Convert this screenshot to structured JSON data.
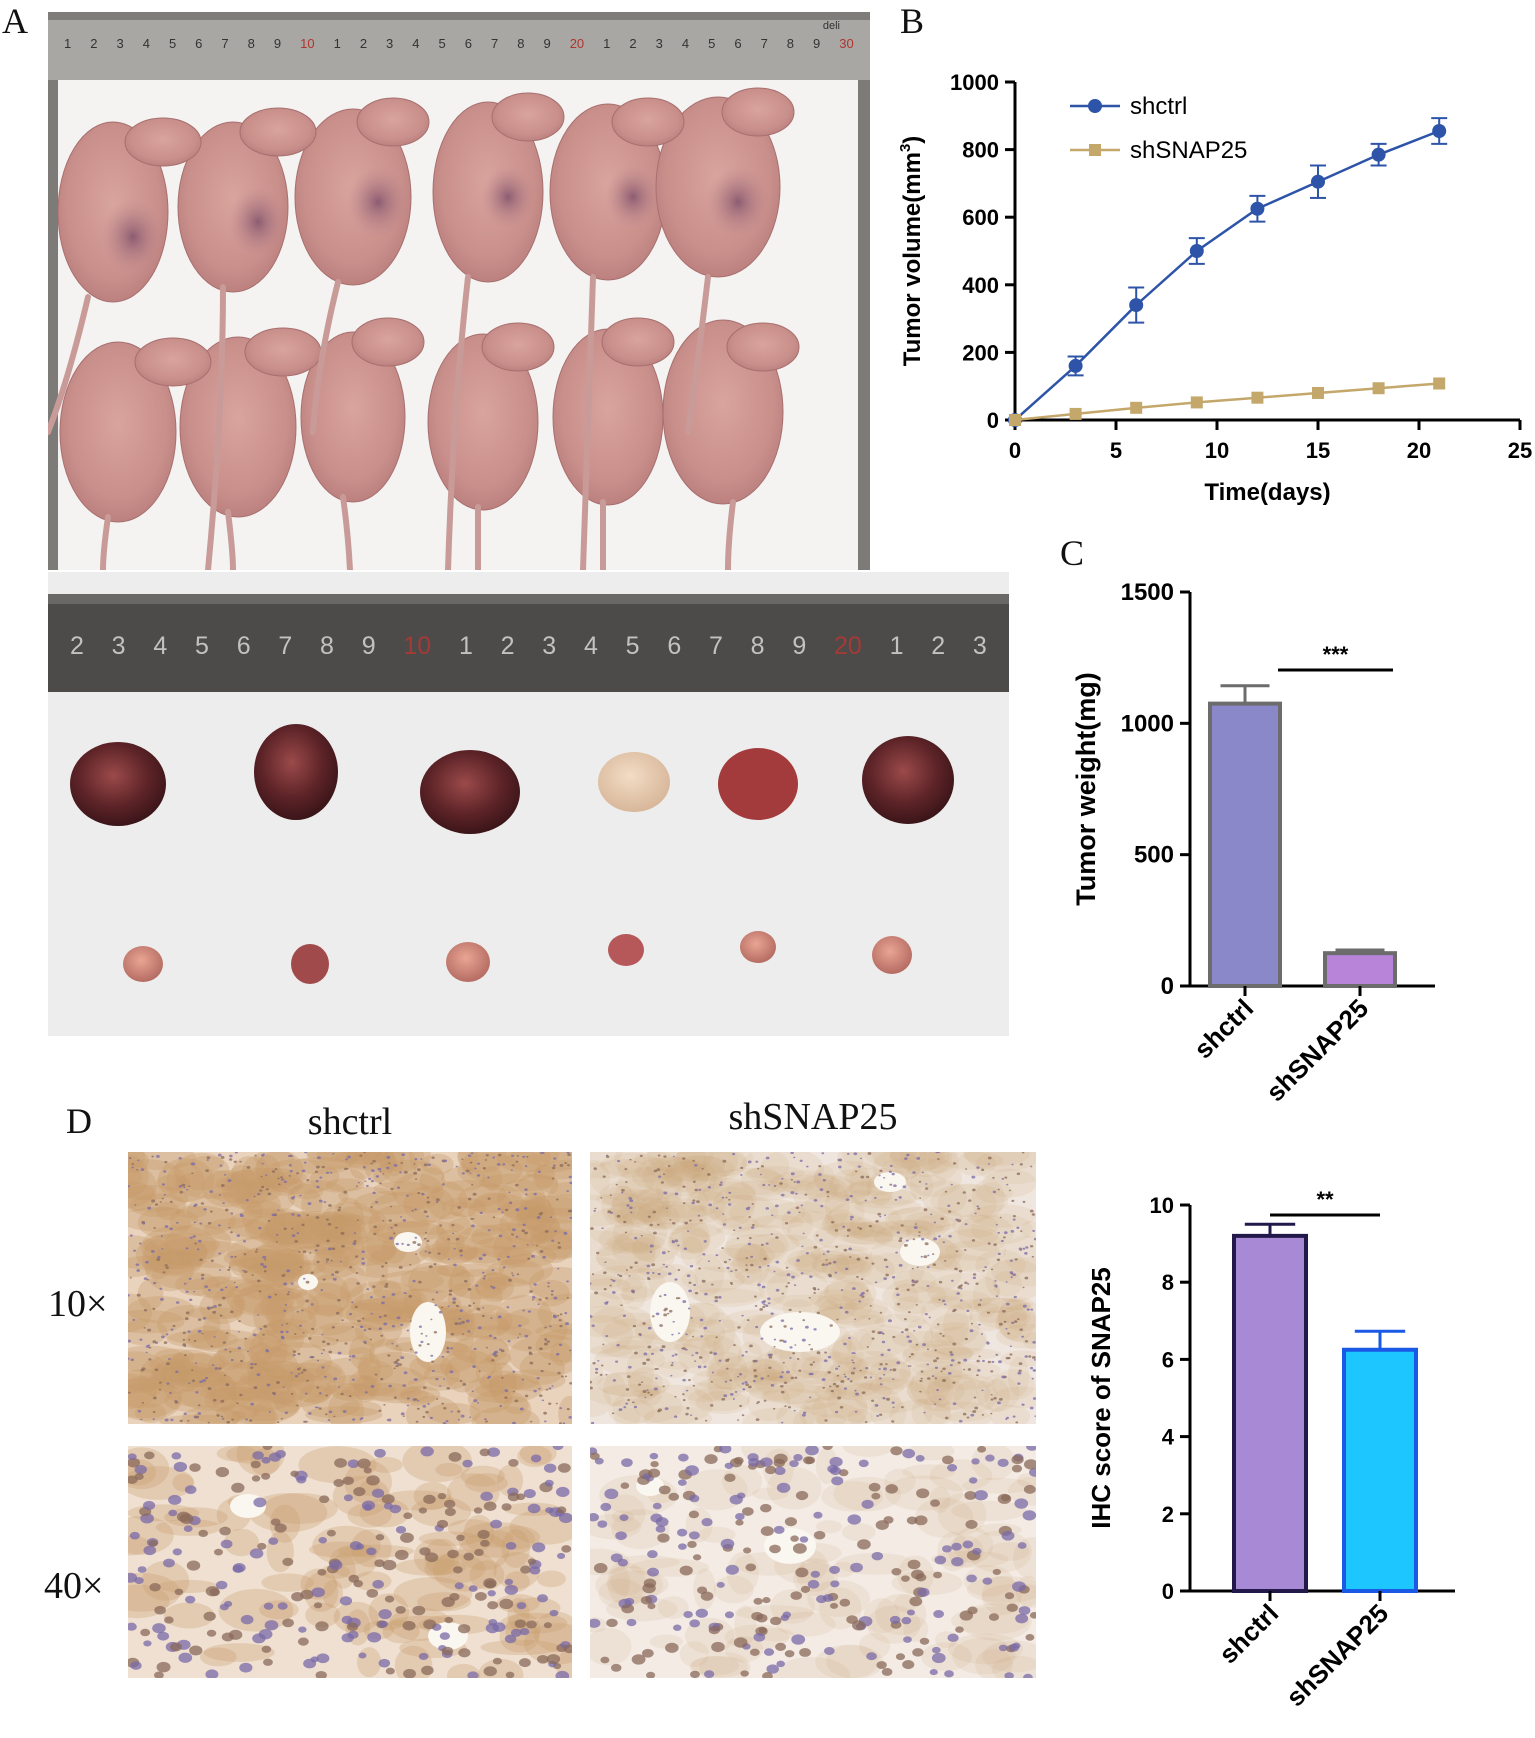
{
  "panels": {
    "A": {
      "letter": "A"
    },
    "B": {
      "letter": "B"
    },
    "C": {
      "letter": "C"
    },
    "D": {
      "letter": "D",
      "col_labels": [
        "shctrl",
        "shSNAP25"
      ],
      "row_labels": [
        "10×",
        "40×"
      ]
    }
  },
  "ruler_top": {
    "numbers": [
      "1",
      "2",
      "3",
      "4",
      "5",
      "6",
      "7",
      "8",
      "9",
      "10",
      "1",
      "2",
      "3",
      "4",
      "5",
      "6",
      "7",
      "8",
      "9",
      "20",
      "1",
      "2",
      "3",
      "4",
      "5",
      "6",
      "7",
      "8",
      "9",
      "30"
    ],
    "brand": "deli"
  },
  "ruler_bottom": {
    "numbers": [
      "2",
      "3",
      "4",
      "5",
      "6",
      "7",
      "8",
      "9",
      "10",
      "1",
      "2",
      "3",
      "4",
      "5",
      "6",
      "7",
      "8",
      "9",
      "20",
      "1",
      "2",
      "3"
    ]
  },
  "colors": {
    "shctrl_line": "#2d54a8",
    "shSNAP25_line": "#c4a76a",
    "bar_c_shctrl": "#8b88c9",
    "bar_c_shSNAP25": "#b784d9",
    "bar_d_shctrl": "#a889d6",
    "bar_d_shSNAP25": "#1ec6ff",
    "ihc_brown": "#c79a6b",
    "ihc_nucleus": "#7a6aa8"
  },
  "chart_data": [
    {
      "id": "B",
      "type": "line",
      "xlabel": "Time(days)",
      "ylabel": "Tumor volume(mm3)",
      "ylabel_main": "Tumor volume(mm",
      "ylabel_sup": "3",
      "ylabel_end": ")",
      "xlim": [
        0,
        25
      ],
      "ylim": [
        0,
        1000
      ],
      "xticks": [
        "0",
        "5",
        "10",
        "15",
        "20",
        "25"
      ],
      "yticks": [
        "0",
        "200",
        "400",
        "600",
        "800",
        "1000"
      ],
      "legend_placement": "top-left",
      "series": [
        {
          "name": "shctrl",
          "marker": "circle",
          "x": [
            0,
            3,
            6,
            9,
            12,
            15,
            18,
            21
          ],
          "y": [
            0,
            160,
            340,
            500,
            625,
            705,
            785,
            855
          ],
          "err": [
            0,
            28,
            52,
            38,
            38,
            48,
            32,
            38
          ]
        },
        {
          "name": "shSNAP25",
          "marker": "square",
          "x": [
            0,
            3,
            6,
            9,
            12,
            15,
            18,
            21
          ],
          "y": [
            0,
            18,
            36,
            52,
            66,
            80,
            94,
            108
          ],
          "err": [
            0,
            0,
            0,
            0,
            0,
            0,
            0,
            0
          ]
        }
      ]
    },
    {
      "id": "C",
      "type": "bar",
      "ylabel": "Tumor weight(mg)",
      "categories": [
        "shctrl",
        "shSNAP25"
      ],
      "values": [
        1075,
        125
      ],
      "err": [
        68,
        12
      ],
      "ylim": [
        0,
        1500
      ],
      "yticks": [
        "0",
        "500",
        "1000",
        "1500"
      ],
      "significance": "***"
    },
    {
      "id": "D",
      "type": "bar",
      "ylabel": "IHC score of SNAP25",
      "categories": [
        "shctrl",
        "shSNAP25"
      ],
      "values": [
        9.2,
        6.25
      ],
      "err": [
        0.3,
        0.48
      ],
      "ylim": [
        0,
        10
      ],
      "yticks": [
        "0",
        "2",
        "4",
        "6",
        "8",
        "10"
      ],
      "significance": "**"
    }
  ]
}
